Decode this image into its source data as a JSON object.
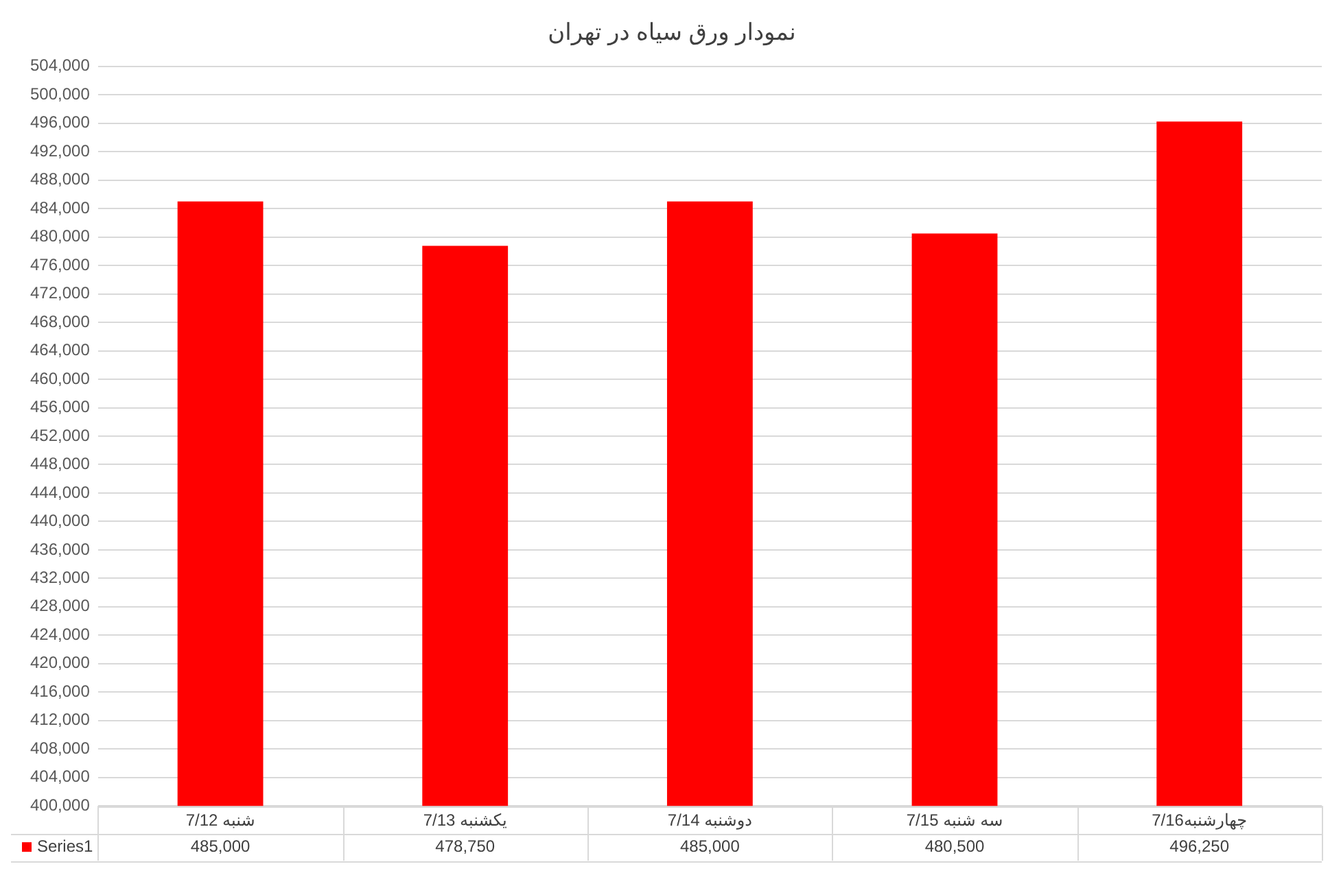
{
  "chart_data": {
    "type": "bar",
    "title": "نمودار ورق سیاه در تهران",
    "categories": [
      "شنبه 7/12",
      "یکشنبه 7/13",
      "دوشنبه 7/14",
      "سه شنبه 7/15",
      "چهارشنبه7/16"
    ],
    "series": [
      {
        "name": "Series1",
        "color": "#ff0000",
        "values": [
          485000,
          478750,
          485000,
          480500,
          496250
        ],
        "value_labels": [
          "485,000",
          "478,750",
          "485,000",
          "480,500",
          "496,250"
        ]
      }
    ],
    "ylim": [
      400000,
      504000
    ],
    "yticks": [
      {
        "value": 400000,
        "label": "400,000"
      },
      {
        "value": 404000,
        "label": "404,000"
      },
      {
        "value": 408000,
        "label": "408,000"
      },
      {
        "value": 412000,
        "label": "412,000"
      },
      {
        "value": 416000,
        "label": "416,000"
      },
      {
        "value": 420000,
        "label": "420,000"
      },
      {
        "value": 424000,
        "label": "424,000"
      },
      {
        "value": 428000,
        "label": "428,000"
      },
      {
        "value": 432000,
        "label": "432,000"
      },
      {
        "value": 436000,
        "label": "436,000"
      },
      {
        "value": 440000,
        "label": "440,000"
      },
      {
        "value": 444000,
        "label": "444,000"
      },
      {
        "value": 448000,
        "label": "448,000"
      },
      {
        "value": 452000,
        "label": "452,000"
      },
      {
        "value": 456000,
        "label": "456,000"
      },
      {
        "value": 460000,
        "label": "460,000"
      },
      {
        "value": 464000,
        "label": "464,000"
      },
      {
        "value": 468000,
        "label": "468,000"
      },
      {
        "value": 472000,
        "label": "472,000"
      },
      {
        "value": 476000,
        "label": "476,000"
      },
      {
        "value": 480000,
        "label": "480,000"
      },
      {
        "value": 484000,
        "label": "484,000"
      },
      {
        "value": 488000,
        "label": "488,000"
      },
      {
        "value": 492000,
        "label": "492,000"
      },
      {
        "value": 496000,
        "label": "496,000"
      },
      {
        "value": 500000,
        "label": "500,000"
      },
      {
        "value": 504000,
        "label": "504,000"
      }
    ],
    "grid": "y",
    "legend": "bottom"
  }
}
